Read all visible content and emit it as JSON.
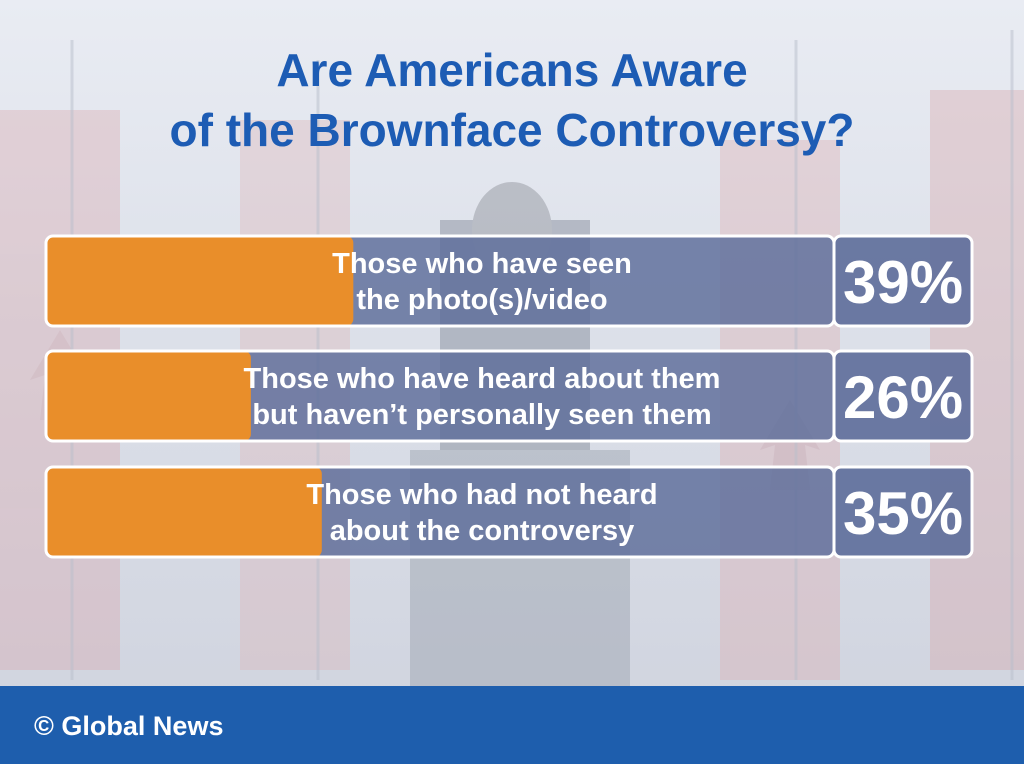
{
  "title_line1": "Are Americans Aware",
  "title_line2": "of the Brownface Controversy?",
  "footer": {
    "copyright_symbol": "©",
    "brand": "Global News"
  },
  "colors": {
    "accent_orange": "#e98e2a",
    "bar_bg": "#5d6d9a",
    "title_blue": "#1d5cb4",
    "footer_blue": "#1e5ead",
    "border": "#ffffff"
  },
  "chart_data": {
    "type": "bar",
    "orientation": "horizontal",
    "title": "Are Americans Aware of the Brownface Controversy?",
    "categories": [
      [
        "Those who have seen",
        "the photo(s)/video"
      ],
      [
        "Those who have heard about them",
        "but haven’t personally seen them"
      ],
      [
        "Those who had not heard",
        "about the controversy"
      ]
    ],
    "values": [
      39,
      26,
      35
    ],
    "value_labels": [
      "39%",
      "26%",
      "35%"
    ],
    "unit": "%",
    "xlim": [
      0,
      100
    ],
    "grid": false,
    "legend": "none"
  }
}
